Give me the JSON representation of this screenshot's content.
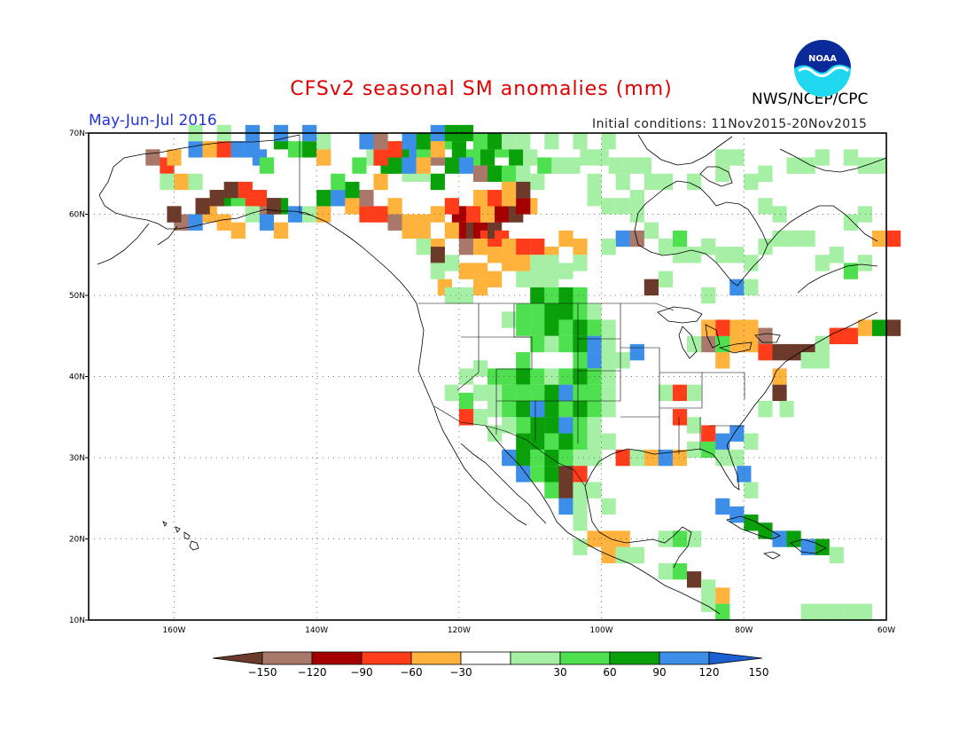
{
  "title": "CFSv2 seasonal SM anomalies (mm)",
  "season": "May-Jun-Jul 2016",
  "initial_conditions": "Initial conditions: 11Nov2015-20Nov2015",
  "org": "NWS/NCEP/CPC",
  "logo_text": "NOAA",
  "map": {
    "lon_range": [
      -172,
      -60
    ],
    "lat_range": [
      10,
      70
    ],
    "lat_ticks": [
      "70N",
      "60N",
      "50N",
      "40N",
      "30N",
      "20N",
      "10N"
    ],
    "lon_ticks": [
      "160W",
      "140W",
      "120W",
      "100W",
      "80W",
      "60W"
    ],
    "grid": "dotted"
  },
  "colorbar": {
    "labels": [
      "-150",
      "-120",
      "-90",
      "-60",
      "-30",
      "30",
      "60",
      "90",
      "120",
      "150"
    ],
    "colors": [
      "#6b3a2a",
      "#a8786a",
      "#a40000",
      "#ff3d1a",
      "#ffb23c",
      "#ffffff",
      "#a6f0a6",
      "#4ee04e",
      "#0aa00a",
      "#3c8ee8",
      "#1b5fd0"
    ]
  },
  "anomaly_cells": [
    [
      -164,
      67,
      "LB"
    ],
    [
      -162,
      66,
      "R"
    ],
    [
      -161,
      67,
      "O"
    ],
    [
      -158,
      68,
      "B"
    ],
    [
      -156,
      68,
      "O"
    ],
    [
      -154,
      68,
      "R"
    ],
    [
      -152,
      68,
      "B"
    ],
    [
      -150,
      68,
      "B"
    ],
    [
      -149,
      67,
      "B"
    ],
    [
      -148,
      66,
      "G"
    ],
    [
      -146,
      69,
      "DG"
    ],
    [
      -144,
      68,
      "G"
    ],
    [
      -142,
      68,
      "DG"
    ],
    [
      -140,
      67,
      "O"
    ],
    [
      -162,
      64,
      "LG"
    ],
    [
      -160,
      64,
      "O"
    ],
    [
      -158,
      64,
      "LG"
    ],
    [
      -154,
      62,
      "DG"
    ],
    [
      -152,
      62,
      "G"
    ],
    [
      -150,
      61,
      "R"
    ],
    [
      -148,
      61,
      "LB"
    ],
    [
      -146,
      61,
      "DG"
    ],
    [
      -144,
      60,
      "B"
    ],
    [
      -142,
      60,
      "LG"
    ],
    [
      -140,
      60,
      "O"
    ],
    [
      -160,
      59,
      "LB"
    ],
    [
      -158,
      59,
      "B"
    ],
    [
      -156,
      60,
      "O"
    ],
    [
      -154,
      59,
      "O"
    ],
    [
      -152,
      58,
      "O"
    ],
    [
      -150,
      60,
      "LG"
    ],
    [
      -148,
      59,
      "B"
    ],
    [
      -146,
      58,
      "O"
    ],
    [
      -161,
      60,
      "BR"
    ],
    [
      -157,
      61,
      "BR"
    ],
    [
      -155,
      62,
      "BR"
    ],
    [
      -153,
      63,
      "BR"
    ],
    [
      -151,
      63,
      "R"
    ],
    [
      -149,
      62,
      "R"
    ],
    [
      -147,
      61,
      "BR"
    ],
    [
      -140,
      62,
      "DG"
    ],
    [
      -138,
      62,
      "B"
    ],
    [
      -136,
      61,
      "O"
    ],
    [
      -134,
      60,
      "R"
    ],
    [
      -132,
      60,
      "R"
    ],
    [
      -130,
      59,
      "LB"
    ],
    [
      -128,
      58,
      "O"
    ],
    [
      -126,
      57,
      "O"
    ],
    [
      -124,
      56,
      "O"
    ],
    [
      -122,
      58,
      "O"
    ],
    [
      -120,
      58,
      "DR"
    ],
    [
      -119,
      58,
      "BR"
    ],
    [
      -118,
      58,
      "DR"
    ],
    [
      -117,
      57,
      "R"
    ],
    [
      -116,
      58,
      "BR"
    ],
    [
      -115,
      57,
      "R"
    ],
    [
      -114,
      56,
      "O"
    ],
    [
      -112,
      56,
      "R"
    ],
    [
      -110,
      56,
      "R"
    ],
    [
      -108,
      55,
      "O"
    ],
    [
      -106,
      57,
      "O"
    ],
    [
      -104,
      56,
      "O"
    ],
    [
      -121,
      60,
      "DR"
    ],
    [
      -119,
      60,
      "R"
    ],
    [
      -117,
      60,
      "O"
    ],
    [
      -115,
      60,
      "DR"
    ],
    [
      -113,
      60,
      "BR"
    ],
    [
      -111,
      61,
      "O"
    ],
    [
      -118,
      62,
      "O"
    ],
    [
      -116,
      62,
      "R"
    ],
    [
      -114,
      62,
      "O"
    ],
    [
      -112,
      61,
      "DR"
    ],
    [
      -122,
      61,
      "R"
    ],
    [
      -124,
      60,
      "O"
    ],
    [
      -126,
      59,
      "O"
    ],
    [
      -128,
      59,
      "O"
    ],
    [
      -130,
      61,
      "O"
    ],
    [
      -132,
      64,
      "O"
    ],
    [
      -134,
      62,
      "LB"
    ],
    [
      -136,
      63,
      "DG"
    ],
    [
      -138,
      64,
      "G"
    ],
    [
      -135,
      66,
      "G"
    ],
    [
      -133,
      67,
      "LG"
    ],
    [
      -131,
      66,
      "DG"
    ],
    [
      -129,
      68,
      "DG"
    ],
    [
      -127,
      68,
      "B"
    ],
    [
      -125,
      68,
      "DG"
    ],
    [
      -123,
      69,
      "G"
    ],
    [
      -121,
      68,
      "DG"
    ],
    [
      -119,
      67,
      "G"
    ],
    [
      -117,
      67,
      "DG"
    ],
    [
      -115,
      68,
      "G"
    ],
    [
      -113,
      67,
      "DG"
    ],
    [
      -111,
      67,
      "LG"
    ],
    [
      -109,
      66,
      "G"
    ],
    [
      -107,
      66,
      "LG"
    ],
    [
      -105,
      66,
      "LG"
    ],
    [
      -103,
      67,
      "LG"
    ],
    [
      -101,
      67,
      "LG"
    ],
    [
      -99,
      66,
      "LG"
    ],
    [
      -97,
      66,
      "LG"
    ],
    [
      -95,
      66,
      "LG"
    ],
    [
      -122,
      66,
      "DG"
    ],
    [
      -120,
      66,
      "B"
    ],
    [
      -118,
      65,
      "LB"
    ],
    [
      -116,
      65,
      "DG"
    ],
    [
      -114,
      65,
      "G"
    ],
    [
      -112,
      65,
      "LG"
    ],
    [
      -110,
      64,
      "LG"
    ],
    [
      -124,
      64,
      "DG"
    ],
    [
      -126,
      65,
      "LG"
    ],
    [
      -128,
      65,
      "LG"
    ],
    [
      -130,
      66,
      "DG"
    ],
    [
      -132,
      67,
      "R"
    ],
    [
      -130,
      68,
      "R"
    ],
    [
      -128,
      66,
      "B"
    ],
    [
      -126,
      67,
      "G"
    ],
    [
      -124,
      67,
      "LB"
    ],
    [
      -134,
      69,
      "B"
    ],
    [
      -132,
      69,
      "LB"
    ],
    [
      -128,
      69,
      "B"
    ],
    [
      -126,
      69,
      "DG"
    ],
    [
      -124,
      70,
      "B"
    ],
    [
      -122,
      70,
      "DG"
    ],
    [
      -120,
      70,
      "DG"
    ],
    [
      -118,
      69,
      "G"
    ],
    [
      -116,
      69,
      "DG"
    ],
    [
      -114,
      69,
      "LG"
    ],
    [
      -112,
      69,
      "LG"
    ],
    [
      -108,
      69,
      "LG"
    ],
    [
      -104,
      69,
      "LG"
    ],
    [
      -100,
      69,
      "LG"
    ],
    [
      -140,
      69,
      "LG"
    ],
    [
      -142,
      70,
      "B"
    ],
    [
      -146,
      70,
      "B"
    ],
    [
      -150,
      70,
      "B"
    ],
    [
      -154,
      70,
      "LG"
    ],
    [
      -158,
      70,
      "LG"
    ],
    [
      -112,
      52,
      "LG"
    ],
    [
      -110,
      50,
      "DG"
    ],
    [
      -108,
      50,
      "G"
    ],
    [
      -106,
      50,
      "DG"
    ],
    [
      -104,
      50,
      "G"
    ],
    [
      -110,
      48,
      "G"
    ],
    [
      -108,
      48,
      "DG"
    ],
    [
      -106,
      48,
      "DG"
    ],
    [
      -104,
      48,
      "G"
    ],
    [
      -102,
      48,
      "LG"
    ],
    [
      -112,
      48,
      "G"
    ],
    [
      -114,
      47,
      "LG"
    ],
    [
      -112,
      46,
      "G"
    ],
    [
      -110,
      46,
      "G"
    ],
    [
      -108,
      46,
      "DG"
    ],
    [
      -106,
      46,
      "G"
    ],
    [
      -104,
      46,
      "DG"
    ],
    [
      -102,
      46,
      "G"
    ],
    [
      -100,
      46,
      "LG"
    ],
    [
      -110,
      44,
      "G"
    ],
    [
      -108,
      44,
      "LG"
    ],
    [
      -106,
      44,
      "G"
    ],
    [
      -104,
      44,
      "DG"
    ],
    [
      -102,
      44,
      "B"
    ],
    [
      -100,
      44,
      "LG"
    ],
    [
      -104,
      42,
      "G"
    ],
    [
      -102,
      42,
      "B"
    ],
    [
      -100,
      42,
      "LG"
    ],
    [
      -98,
      42,
      "LG"
    ],
    [
      -96,
      43,
      "B"
    ],
    [
      -112,
      42,
      "G"
    ],
    [
      -114,
      40,
      "G"
    ],
    [
      -112,
      40,
      "DG"
    ],
    [
      -110,
      40,
      "G"
    ],
    [
      -108,
      40,
      "LG"
    ],
    [
      -106,
      40,
      "G"
    ],
    [
      -104,
      40,
      "DG"
    ],
    [
      -102,
      40,
      "G"
    ],
    [
      -100,
      40,
      "LG"
    ],
    [
      -116,
      40,
      "G"
    ],
    [
      -118,
      41,
      "LG"
    ],
    [
      -120,
      40,
      "LG"
    ],
    [
      -114,
      38,
      "G"
    ],
    [
      -112,
      38,
      "G"
    ],
    [
      -110,
      38,
      "G"
    ],
    [
      -108,
      38,
      "DG"
    ],
    [
      -106,
      38,
      "B"
    ],
    [
      -104,
      38,
      "G"
    ],
    [
      -102,
      38,
      "G"
    ],
    [
      -100,
      38,
      "LG"
    ],
    [
      -116,
      38,
      "LG"
    ],
    [
      -118,
      38,
      "LG"
    ],
    [
      -120,
      37,
      "G"
    ],
    [
      -122,
      38,
      "LG"
    ],
    [
      -114,
      36,
      "G"
    ],
    [
      -112,
      36,
      "DG"
    ],
    [
      -110,
      36,
      "B"
    ],
    [
      -108,
      36,
      "DG"
    ],
    [
      -106,
      36,
      "G"
    ],
    [
      -104,
      36,
      "DG"
    ],
    [
      -102,
      36,
      "G"
    ],
    [
      -100,
      36,
      "LG"
    ],
    [
      -116,
      36,
      "LG"
    ],
    [
      -118,
      35,
      "LG"
    ],
    [
      -120,
      35,
      "R"
    ],
    [
      -110,
      34,
      "DG"
    ],
    [
      -108,
      34,
      "DG"
    ],
    [
      -106,
      34,
      "B"
    ],
    [
      -104,
      34,
      "G"
    ],
    [
      -102,
      34,
      "LG"
    ],
    [
      -112,
      34,
      "G"
    ],
    [
      -114,
      34,
      "LG"
    ],
    [
      -116,
      33,
      "LG"
    ],
    [
      -112,
      32,
      "DG"
    ],
    [
      -110,
      32,
      "DG"
    ],
    [
      -108,
      32,
      "G"
    ],
    [
      -106,
      32,
      "DG"
    ],
    [
      -104,
      32,
      "G"
    ],
    [
      -102,
      32,
      "LG"
    ],
    [
      -100,
      32,
      "LG"
    ],
    [
      -114,
      30,
      "B"
    ],
    [
      -112,
      30,
      "DG"
    ],
    [
      -110,
      30,
      "G"
    ],
    [
      -108,
      30,
      "DG"
    ],
    [
      -106,
      30,
      "G"
    ],
    [
      -104,
      30,
      "LG"
    ],
    [
      -102,
      30,
      "LG"
    ],
    [
      -112,
      28,
      "B"
    ],
    [
      -110,
      28,
      "G"
    ],
    [
      -108,
      28,
      "DG"
    ],
    [
      -106,
      28,
      "BR"
    ],
    [
      -104,
      28,
      "R"
    ],
    [
      -108,
      26,
      "G"
    ],
    [
      -106,
      26,
      "BR"
    ],
    [
      -104,
      26,
      "LG"
    ],
    [
      -102,
      26,
      "LG"
    ],
    [
      -106,
      24,
      "B"
    ],
    [
      -104,
      24,
      "LG"
    ],
    [
      -100,
      24,
      "LG"
    ],
    [
      -104,
      22,
      "LG"
    ],
    [
      -102,
      20,
      "O"
    ],
    [
      -100,
      20,
      "O"
    ],
    [
      -98,
      20,
      "O"
    ],
    [
      -100,
      18,
      "O"
    ],
    [
      -98,
      18,
      "LG"
    ],
    [
      -96,
      18,
      "LG"
    ],
    [
      -104,
      19,
      "LG"
    ],
    [
      -92,
      20,
      "LG"
    ],
    [
      -90,
      20,
      "G"
    ],
    [
      -88,
      20,
      "LG"
    ],
    [
      -92,
      16,
      "LG"
    ],
    [
      -90,
      16,
      "G"
    ],
    [
      -88,
      15,
      "BR"
    ],
    [
      -86,
      14,
      "LG"
    ],
    [
      -84,
      13,
      "O"
    ],
    [
      -86,
      12,
      "LG"
    ],
    [
      -84,
      11,
      "G"
    ],
    [
      -98,
      30,
      "R"
    ],
    [
      -96,
      30,
      "LG"
    ],
    [
      -94,
      30,
      "O"
    ],
    [
      -92,
      30,
      "B"
    ],
    [
      -90,
      30,
      "O"
    ],
    [
      -88,
      31,
      "LG"
    ],
    [
      -86,
      31,
      "G"
    ],
    [
      -84,
      32,
      "B"
    ],
    [
      -82,
      33,
      "B"
    ],
    [
      -80,
      32,
      "LG"
    ],
    [
      -82,
      30,
      "LG"
    ],
    [
      -81,
      28,
      "B"
    ],
    [
      -80,
      26,
      "LG"
    ],
    [
      -84,
      30,
      "LG"
    ],
    [
      -86,
      33,
      "R"
    ],
    [
      -88,
      34,
      "LG"
    ],
    [
      -90,
      35,
      "R"
    ],
    [
      -92,
      38,
      "LG"
    ],
    [
      -90,
      38,
      "R"
    ],
    [
      -88,
      38,
      "LG"
    ],
    [
      -84,
      42,
      "O"
    ],
    [
      -82,
      44,
      "O"
    ],
    [
      -80,
      44,
      "O"
    ],
    [
      -86,
      44,
      "LB"
    ],
    [
      -84,
      44,
      "G"
    ],
    [
      -78,
      43,
      "R"
    ],
    [
      -76,
      43,
      "BR"
    ],
    [
      -74,
      43,
      "BR"
    ],
    [
      -72,
      43,
      "BR"
    ],
    [
      -70,
      44,
      "LG"
    ],
    [
      -68,
      45,
      "R"
    ],
    [
      -66,
      45,
      "R"
    ],
    [
      -64,
      46,
      "O"
    ],
    [
      -62,
      46,
      "DG"
    ],
    [
      -60,
      46,
      "BR"
    ],
    [
      -78,
      45,
      "LB"
    ],
    [
      -80,
      46,
      "O"
    ],
    [
      -82,
      46,
      "O"
    ],
    [
      -84,
      46,
      "R"
    ],
    [
      -86,
      46,
      "O"
    ],
    [
      -88,
      44,
      "LG"
    ],
    [
      -76,
      40,
      "O"
    ],
    [
      -76,
      38,
      "BR"
    ],
    [
      -78,
      36,
      "LG"
    ],
    [
      -75,
      36,
      "LG"
    ],
    [
      -72,
      42,
      "LG"
    ],
    [
      -70,
      42,
      "LG"
    ],
    [
      -84,
      24,
      "B"
    ],
    [
      -82,
      23,
      "B"
    ],
    [
      -80,
      22,
      "DG"
    ],
    [
      -78,
      21,
      "DG"
    ],
    [
      -76,
      20,
      "B"
    ],
    [
      -74,
      20,
      "DG"
    ],
    [
      -72,
      19,
      "B"
    ],
    [
      -70,
      19,
      "DG"
    ],
    [
      -68,
      11,
      "LG"
    ],
    [
      -66,
      11,
      "LG"
    ],
    [
      -64,
      11,
      "LG"
    ],
    [
      -70,
      11,
      "LG"
    ],
    [
      -72,
      11,
      "LG"
    ],
    [
      -68,
      18,
      "LG"
    ],
    [
      -92,
      56,
      "LG"
    ],
    [
      -90,
      55,
      "LG"
    ],
    [
      -88,
      55,
      "LG"
    ],
    [
      -86,
      56,
      "LG"
    ],
    [
      -94,
      58,
      "LG"
    ],
    [
      -96,
      60,
      "LG"
    ],
    [
      -98,
      61,
      "LG"
    ],
    [
      -100,
      61,
      "LG"
    ],
    [
      -102,
      62,
      "LG"
    ],
    [
      -96,
      62,
      "LG"
    ],
    [
      -90,
      57,
      "G"
    ],
    [
      -84,
      55,
      "LG"
    ],
    [
      -82,
      55,
      "LG"
    ],
    [
      -80,
      54,
      "LG"
    ],
    [
      -78,
      56,
      "LG"
    ],
    [
      -76,
      57,
      "LG"
    ],
    [
      -74,
      57,
      "LG"
    ],
    [
      -72,
      57,
      "LG"
    ],
    [
      -70,
      54,
      "LG"
    ],
    [
      -68,
      55,
      "LG"
    ],
    [
      -66,
      53,
      "G"
    ],
    [
      -64,
      54,
      "LG"
    ],
    [
      -62,
      57,
      "O"
    ],
    [
      -60,
      57,
      "R"
    ],
    [
      -66,
      59,
      "LG"
    ],
    [
      -64,
      60,
      "LG"
    ],
    [
      -78,
      61,
      "LG"
    ],
    [
      -76,
      60,
      "LG"
    ],
    [
      -82,
      51,
      "B"
    ],
    [
      -80,
      51,
      "LG"
    ],
    [
      -86,
      50,
      "LG"
    ],
    [
      -92,
      52,
      "LG"
    ],
    [
      -94,
      51,
      "BR"
    ],
    [
      -98,
      57,
      "B"
    ],
    [
      -96,
      57,
      "LB"
    ],
    [
      -100,
      56,
      "LG"
    ],
    [
      -104,
      54,
      "LG"
    ],
    [
      -106,
      53,
      "LG"
    ],
    [
      -108,
      52,
      "LG"
    ],
    [
      -110,
      52,
      "LG"
    ],
    [
      -116,
      52,
      "O"
    ],
    [
      -118,
      51,
      "O"
    ],
    [
      -120,
      53,
      "O"
    ],
    [
      -122,
      54,
      "LG"
    ],
    [
      -124,
      55,
      "BR"
    ],
    [
      -126,
      56,
      "LG"
    ],
    [
      -124,
      53,
      "LG"
    ],
    [
      -123,
      51,
      "O"
    ],
    [
      -122,
      50,
      "LG"
    ],
    [
      -120,
      50,
      "LG"
    ],
    [
      -118,
      53,
      "O"
    ],
    [
      -120,
      56,
      "LB"
    ],
    [
      -118,
      56,
      "O"
    ],
    [
      -116,
      55,
      "O"
    ],
    [
      -114,
      54,
      "O"
    ],
    [
      -112,
      54,
      "O"
    ],
    [
      -110,
      54,
      "LG"
    ],
    [
      -108,
      54,
      "LG"
    ],
    [
      -124,
      68,
      "O"
    ],
    [
      -126,
      66,
      "O"
    ],
    [
      -114,
      63,
      "O"
    ],
    [
      -112,
      63,
      "BR"
    ],
    [
      -102,
      64,
      "LG"
    ],
    [
      -98,
      64,
      "LG"
    ],
    [
      -94,
      64,
      "LG"
    ],
    [
      -92,
      64,
      "LG"
    ],
    [
      -88,
      64,
      "LG"
    ],
    [
      -84,
      65,
      "LG"
    ],
    [
      -80,
      64,
      "LG"
    ],
    [
      -78,
      65,
      "LG"
    ],
    [
      -84,
      67,
      "LG"
    ],
    [
      -82,
      67,
      "LG"
    ],
    [
      -74,
      66,
      "LG"
    ],
    [
      -72,
      66,
      "LG"
    ],
    [
      -70,
      67,
      "LG"
    ],
    [
      -66,
      67,
      "LG"
    ],
    [
      -64,
      66,
      "LG"
    ],
    [
      -62,
      66,
      "LG"
    ]
  ]
}
